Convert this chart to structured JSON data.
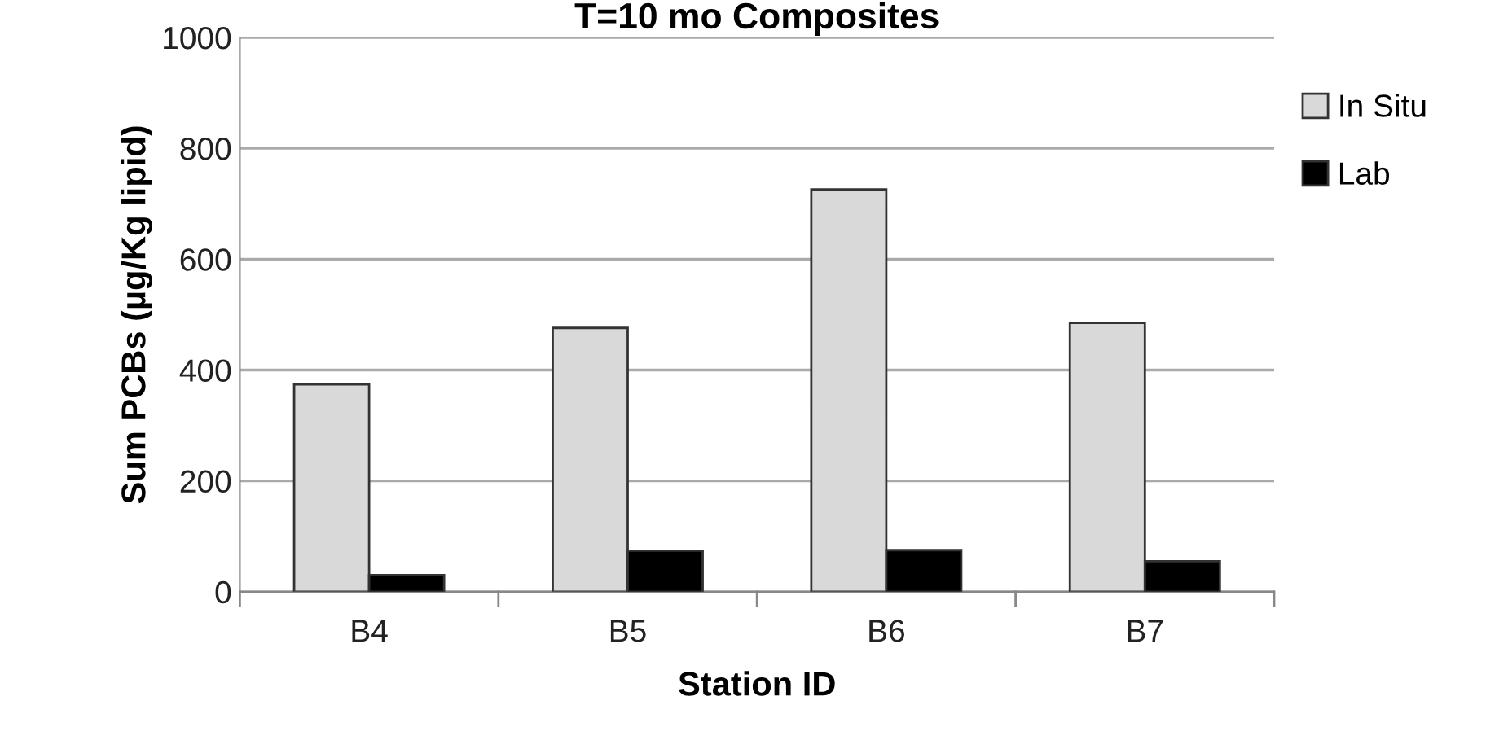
{
  "chart_data": {
    "type": "bar",
    "title": "T=10 mo Composites",
    "xlabel": "Station ID",
    "ylabel": "Sum PCBs (µg/Kg lipid)",
    "categories": [
      "B4",
      "B5",
      "B6",
      "B7"
    ],
    "series": [
      {
        "name": "In Situ",
        "color": "#d9d9d9",
        "values": [
          374,
          476,
          726,
          485
        ]
      },
      {
        "name": "Lab",
        "color": "#000000",
        "values": [
          30,
          74,
          75,
          55
        ]
      }
    ],
    "ylim": [
      0,
      1000
    ],
    "yticks": [
      0,
      200,
      400,
      600,
      800,
      1000
    ],
    "grid": "y",
    "legend": "top right"
  }
}
